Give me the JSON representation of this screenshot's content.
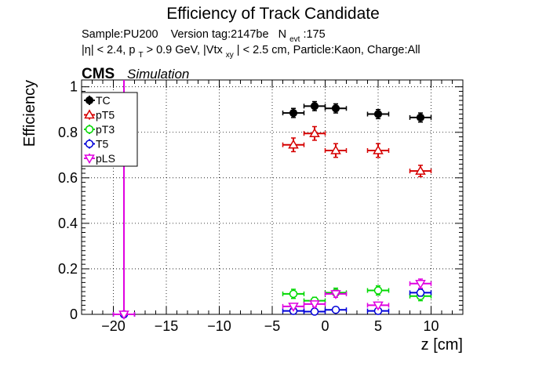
{
  "chart_data": {
    "type": "scatter",
    "title": "Efficiency of Track Candidate",
    "subtitle_line1": {
      "sample": "Sample:PU200",
      "version": "Version tag:2147be",
      "nevt_main": "N",
      "nevt_sub": "evt",
      "nevt_value": ":175"
    },
    "subtitle_line2": {
      "eta_cut": "|η| < 2.4, p",
      "pt_sub": "T",
      "pt_cut": " > 0.9 GeV, |Vtx",
      "vtx_sub": "xy",
      "rest": "| < 2.5 cm, Particle:Kaon, Charge:All"
    },
    "cms_label": "CMS",
    "simulation_label": "Simulation",
    "xlabel": "z [cm]",
    "ylabel": "Efficiency",
    "xlim": [
      -23,
      13
    ],
    "ylim": [
      0,
      1.03
    ],
    "x_ticks": [
      -20,
      -15,
      -10,
      -5,
      0,
      5,
      10
    ],
    "x_tick_labels": [
      "−20",
      "−15",
      "−10",
      "−5",
      "0",
      "5",
      "10"
    ],
    "y_ticks": [
      0,
      0.2,
      0.4,
      0.6,
      0.8,
      1
    ],
    "y_tick_labels": [
      "0",
      "0.2",
      "0.4",
      "0.6",
      "0.8",
      "1"
    ],
    "grid": true,
    "legend_position": "top-left",
    "series": [
      {
        "name": "TC",
        "color": "#000000",
        "marker": "filled-circle",
        "points": [
          {
            "x": -3,
            "xerr": 1,
            "y": 0.885,
            "yerr": 0.02
          },
          {
            "x": -1,
            "xerr": 1,
            "y": 0.915,
            "yerr": 0.02
          },
          {
            "x": 1,
            "xerr": 1,
            "y": 0.905,
            "yerr": 0.02
          },
          {
            "x": 5,
            "xerr": 1,
            "y": 0.88,
            "yerr": 0.02
          },
          {
            "x": 9,
            "xerr": 1,
            "y": 0.865,
            "yerr": 0.02
          }
        ]
      },
      {
        "name": "pT5",
        "color": "#d60000",
        "marker": "open-triangle",
        "points": [
          {
            "x": -3,
            "xerr": 1,
            "y": 0.745,
            "yerr": 0.03
          },
          {
            "x": -1,
            "xerr": 1,
            "y": 0.795,
            "yerr": 0.03
          },
          {
            "x": 1,
            "xerr": 1,
            "y": 0.72,
            "yerr": 0.03
          },
          {
            "x": 5,
            "xerr": 1,
            "y": 0.72,
            "yerr": 0.03
          },
          {
            "x": 9,
            "xerr": 1,
            "y": 0.63,
            "yerr": 0.025
          }
        ]
      },
      {
        "name": "pT3",
        "color": "#00d800",
        "marker": "open-circle",
        "points": [
          {
            "x": -3,
            "xerr": 1,
            "y": 0.09,
            "yerr": 0.02
          },
          {
            "x": -1,
            "xerr": 1,
            "y": 0.06,
            "yerr": 0.015
          },
          {
            "x": 1,
            "xerr": 1,
            "y": 0.095,
            "yerr": 0.02
          },
          {
            "x": 5,
            "xerr": 1,
            "y": 0.105,
            "yerr": 0.02
          },
          {
            "x": 9,
            "xerr": 1,
            "y": 0.08,
            "yerr": 0.02
          }
        ]
      },
      {
        "name": "T5",
        "color": "#0000d8",
        "marker": "open-circle",
        "points": [
          {
            "x": -19,
            "xerr": 1,
            "y": 0.0,
            "yerr": 0.0
          },
          {
            "x": -3,
            "xerr": 1,
            "y": 0.015,
            "yerr": 0.008
          },
          {
            "x": -1,
            "xerr": 1,
            "y": 0.012,
            "yerr": 0.008
          },
          {
            "x": 1,
            "xerr": 1,
            "y": 0.02,
            "yerr": 0.008
          },
          {
            "x": 5,
            "xerr": 1,
            "y": 0.015,
            "yerr": 0.008
          },
          {
            "x": 9,
            "xerr": 1,
            "y": 0.095,
            "yerr": 0.015
          }
        ]
      },
      {
        "name": "pLS",
        "color": "#e000e0",
        "marker": "open-triangle-down",
        "points": [
          {
            "x": -19,
            "xerr": 1,
            "y": 0.0,
            "yerr": 0.0,
            "yerr_up": 1.03
          },
          {
            "x": -3,
            "xerr": 1,
            "y": 0.035,
            "yerr": 0.012
          },
          {
            "x": -1,
            "xerr": 1,
            "y": 0.045,
            "yerr": 0.012
          },
          {
            "x": 1,
            "xerr": 1,
            "y": 0.09,
            "yerr": 0.015
          },
          {
            "x": 5,
            "xerr": 1,
            "y": 0.04,
            "yerr": 0.012
          },
          {
            "x": 9,
            "xerr": 1,
            "y": 0.135,
            "yerr": 0.02
          }
        ]
      }
    ]
  }
}
